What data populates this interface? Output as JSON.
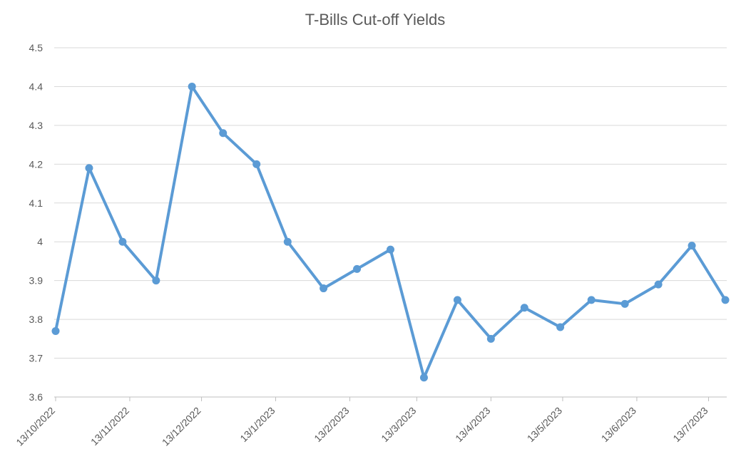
{
  "chart_data": {
    "type": "line",
    "title": "T-Bills Cut-off Yields",
    "xlabel": "",
    "ylabel": "",
    "ylim": [
      3.6,
      4.5
    ],
    "y_ticks": [
      "3.6",
      "3.7",
      "3.8",
      "3.9",
      "4",
      "4.1",
      "4.2",
      "4.3",
      "4.4",
      "4.5"
    ],
    "x_tick_labels": [
      "13/10/2022",
      "13/11/2022",
      "13/12/2022",
      "13/1/2023",
      "13/2/2023",
      "13/3/2023",
      "13/4/2023",
      "13/5/2023",
      "13/6/2023",
      "13/7/2023"
    ],
    "grid": true,
    "legend": "none",
    "colors": {
      "series": "#5b9bd5",
      "grid": "#d9d9d9",
      "axis": "#bfbfbf",
      "text": "#595959"
    },
    "series": [
      {
        "x": [
          "2022-10-13",
          "2022-10-27",
          "2022-11-10",
          "2022-11-24",
          "2022-12-09",
          "2022-12-22",
          "2023-01-05",
          "2023-01-18",
          "2023-02-02",
          "2023-02-16",
          "2023-03-02",
          "2023-03-16",
          "2023-03-30",
          "2023-04-13",
          "2023-04-27",
          "2023-05-12",
          "2023-05-25",
          "2023-06-08",
          "2023-06-22",
          "2023-07-06",
          "2023-07-20"
        ],
        "values": [
          3.77,
          4.19,
          4.0,
          3.9,
          4.4,
          4.28,
          4.2,
          4.0,
          3.88,
          3.93,
          3.98,
          3.65,
          3.85,
          3.75,
          3.83,
          3.78,
          3.85,
          3.84,
          3.89,
          3.99,
          3.85
        ]
      }
    ]
  }
}
